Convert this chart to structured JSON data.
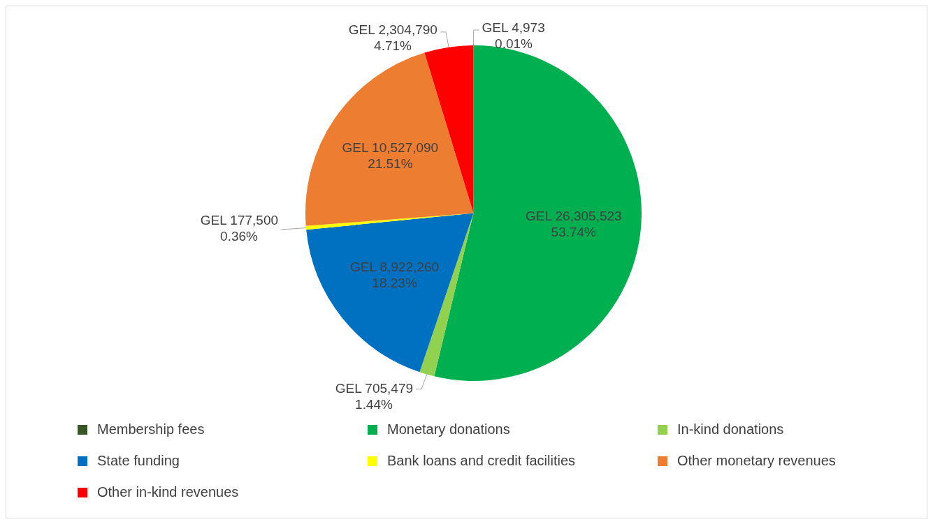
{
  "chart_data": {
    "type": "pie",
    "categories": [
      "Membership fees",
      "Monetary donations",
      "In-kind donations",
      "State funding",
      "Bank loans and credit facilities",
      "Other monetary revenues",
      "Other in-kind revenues"
    ],
    "values": [
      4973,
      26305523,
      705479,
      8922260,
      177500,
      10527090,
      2304790
    ],
    "colors": [
      "#375623",
      "#00b050",
      "#92d050",
      "#0070c0",
      "#ffff00",
      "#ed7d31",
      "#ff0000"
    ],
    "value_labels": [
      "GEL 4,973\n0.01%",
      "GEL 26,305,523\n53.74%",
      "GEL 705,479\n1.44%",
      "GEL 8,922,260\n18.23%",
      "GEL 177,500\n0.36%",
      "GEL 10,527,090\n21.51%",
      "GEL 2,304,790\n4.71%"
    ],
    "legend": "bottom"
  }
}
